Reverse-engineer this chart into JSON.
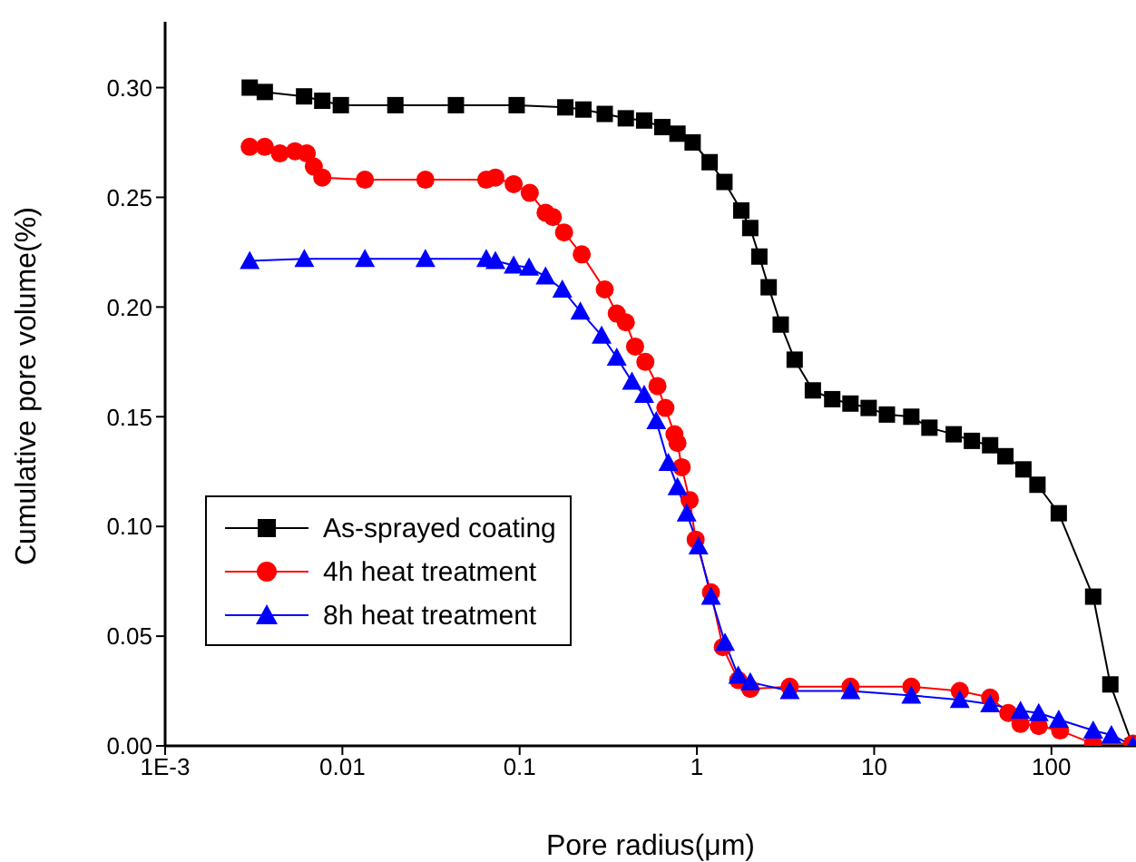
{
  "chart_data": {
    "type": "line",
    "xlabel": "Pore radius(μm)",
    "ylabel": "Cumulative pore volume(%)",
    "log": "x",
    "xlim": [
      0.001,
      300
    ],
    "ylim": [
      0,
      0.33
    ],
    "xticks": [
      {
        "value": 0.001,
        "label": "1E-3"
      },
      {
        "value": 0.01,
        "label": "0.01"
      },
      {
        "value": 0.1,
        "label": "0.1"
      },
      {
        "value": 1,
        "label": "1"
      },
      {
        "value": 10,
        "label": "10"
      },
      {
        "value": 100,
        "label": "100"
      }
    ],
    "yticks": [
      {
        "value": 0,
        "label": "0.00"
      },
      {
        "value": 0.05,
        "label": "0.05"
      },
      {
        "value": 0.1,
        "label": "0.10"
      },
      {
        "value": 0.15,
        "label": "0.15"
      },
      {
        "value": 0.2,
        "label": "0.20"
      },
      {
        "value": 0.25,
        "label": "0.25"
      },
      {
        "value": 0.3,
        "label": "0.30"
      }
    ],
    "grid": false,
    "legend": "center left",
    "line_style": "solid",
    "series": [
      {
        "name": "As-sprayed coating",
        "color": "#000000",
        "marker": "square",
        "x": [
          0.003,
          0.00365,
          0.00608,
          0.0077,
          0.0098,
          0.0199,
          0.0437,
          0.0962,
          0.181,
          0.229,
          0.302,
          0.397,
          0.504,
          0.638,
          0.777,
          0.946,
          1.18,
          1.43,
          1.78,
          2.0,
          2.25,
          2.54,
          2.97,
          3.56,
          4.51,
          5.8,
          7.35,
          9.31,
          11.8,
          16.2,
          20.5,
          28.1,
          35.6,
          45.1,
          55.0,
          69.5,
          83.4,
          110,
          172,
          215,
          288
        ],
        "values": [
          0.3,
          0.298,
          0.296,
          0.294,
          0.292,
          0.292,
          0.292,
          0.292,
          0.291,
          0.29,
          0.288,
          0.286,
          0.285,
          0.282,
          0.279,
          0.275,
          0.266,
          0.257,
          0.244,
          0.236,
          0.223,
          0.209,
          0.192,
          0.176,
          0.162,
          0.158,
          0.156,
          0.154,
          0.151,
          0.15,
          0.145,
          0.142,
          0.139,
          0.137,
          0.132,
          0.126,
          0.119,
          0.106,
          0.068,
          0.028,
          0
        ]
      },
      {
        "name": "4h heat treatment",
        "color": "#ff0000",
        "marker": "circle",
        "x": [
          0.003,
          0.00365,
          0.00444,
          0.0054,
          0.0063,
          0.0069,
          0.0077,
          0.0134,
          0.0294,
          0.0648,
          0.073,
          0.0925,
          0.114,
          0.14,
          0.154,
          0.178,
          0.224,
          0.302,
          0.353,
          0.397,
          0.448,
          0.512,
          0.599,
          0.664,
          0.747,
          0.777,
          0.821,
          0.91,
          0.984,
          1.2,
          1.4,
          1.71,
          2.0,
          3.34,
          7.35,
          16.2,
          30.4,
          45.1,
          57.1,
          66.9,
          84.8,
          112,
          172,
          288
        ],
        "values": [
          0.273,
          0.273,
          0.27,
          0.271,
          0.27,
          0.264,
          0.259,
          0.258,
          0.258,
          0.258,
          0.259,
          0.256,
          0.252,
          0.243,
          0.241,
          0.234,
          0.224,
          0.208,
          0.197,
          0.193,
          0.182,
          0.175,
          0.164,
          0.154,
          0.142,
          0.138,
          0.127,
          0.112,
          0.094,
          0.07,
          0.045,
          0.03,
          0.026,
          0.027,
          0.027,
          0.027,
          0.025,
          0.022,
          0.015,
          0.01,
          0.009,
          0.007,
          0.001,
          0.001
        ]
      },
      {
        "name": "8h heat treatment",
        "color": "#0000ff",
        "marker": "triangle",
        "x": [
          0.003,
          0.0061,
          0.0134,
          0.0294,
          0.0648,
          0.073,
          0.0925,
          0.113,
          0.14,
          0.174,
          0.22,
          0.29,
          0.353,
          0.43,
          0.504,
          0.59,
          0.69,
          0.777,
          0.875,
          1.02,
          1.2,
          1.44,
          1.71,
          2.0,
          3.34,
          7.35,
          16.2,
          30.4,
          45.1,
          66.9,
          84.8,
          110,
          172,
          218,
          288
        ],
        "values": [
          0.221,
          0.222,
          0.222,
          0.222,
          0.222,
          0.221,
          0.219,
          0.218,
          0.214,
          0.208,
          0.198,
          0.187,
          0.177,
          0.166,
          0.16,
          0.148,
          0.129,
          0.118,
          0.106,
          0.091,
          0.068,
          0.047,
          0.032,
          0.029,
          0.025,
          0.025,
          0.023,
          0.021,
          0.019,
          0.016,
          0.015,
          0.012,
          0.007,
          0.005,
          0
        ]
      }
    ]
  }
}
